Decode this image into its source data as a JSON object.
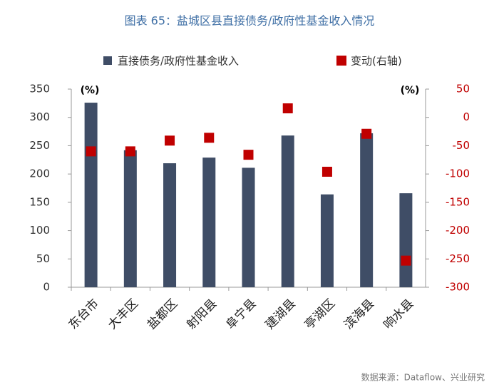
{
  "chart_data": {
    "type": "bar_scatter",
    "title": "图表 65：盐城区县直接债务/政府性基金收入情况",
    "categories": [
      "东台市",
      "大丰区",
      "盐都区",
      "射阳县",
      "阜宁县",
      "建湖县",
      "亭湖区",
      "滨海县",
      "响水县"
    ],
    "series": [
      {
        "name": "直接债务/政府性基金收入",
        "color": "#3f4d66",
        "kind": "bar",
        "values": [
          326,
          242,
          219,
          229,
          211,
          268,
          164,
          272,
          166
        ]
      },
      {
        "name": "变动(右轴)",
        "color": "#c00000",
        "kind": "marker",
        "axis": "y2",
        "values": [
          -60,
          -60,
          -41,
          -36,
          -66,
          16,
          -96,
          -29,
          -253
        ]
      }
    ],
    "ylim": [
      0,
      350
    ],
    "yticks": [
      0,
      50,
      100,
      150,
      200,
      250,
      300,
      350
    ],
    "y2lim": [
      -300,
      50
    ],
    "y2ticks": [
      50,
      0,
      -50,
      -100,
      -150,
      -200,
      -250,
      -300
    ],
    "left_unit": "(%)",
    "right_unit": "(%)",
    "source": "数据来源：Dataflow、兴业研究"
  }
}
